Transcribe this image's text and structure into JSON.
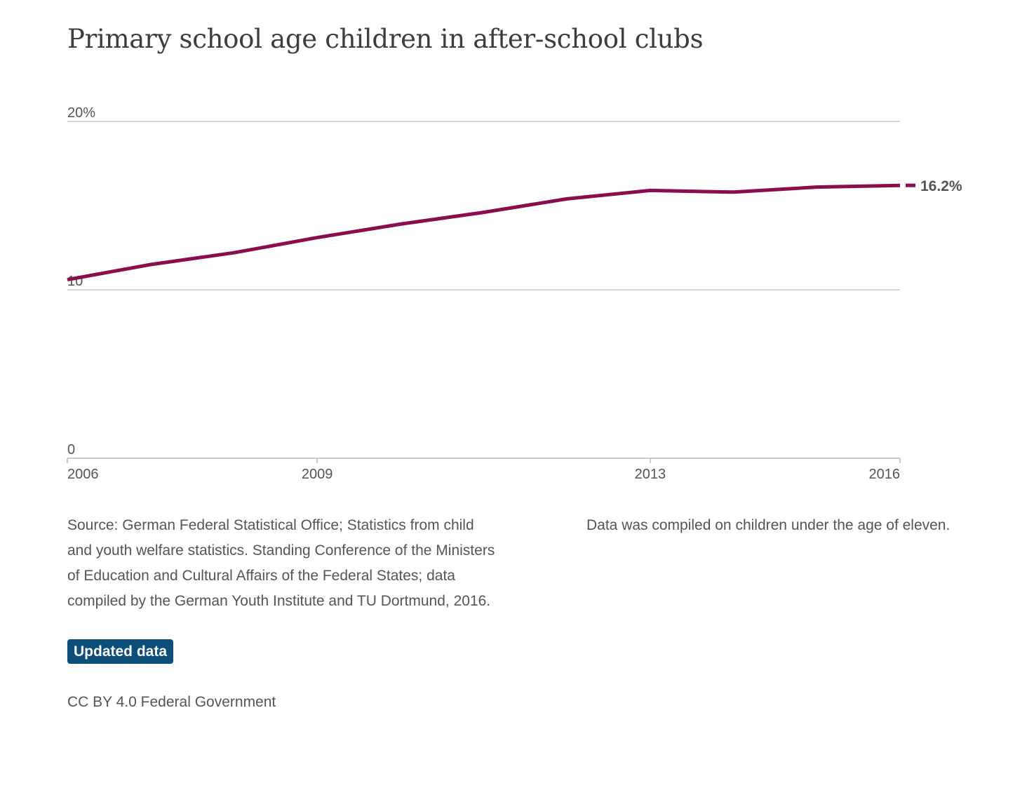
{
  "chart_data": {
    "type": "line",
    "title": "Primary school age children in after-school clubs",
    "x": [
      2006,
      2007,
      2008,
      2009,
      2010,
      2011,
      2012,
      2013,
      2014,
      2015,
      2016
    ],
    "series": [
      {
        "values": [
          10.6,
          11.5,
          12.2,
          13.1,
          13.9,
          14.6,
          15.4,
          15.9,
          15.8,
          16.1,
          16.2
        ],
        "color": "#8b0d4e"
      }
    ],
    "end_label": "16.2%",
    "x_ticks": [
      {
        "value": 2006,
        "label": "2006"
      },
      {
        "value": 2009,
        "label": "2009"
      },
      {
        "value": 2013,
        "label": "2013"
      },
      {
        "value": 2016,
        "label": "2016"
      }
    ],
    "y_ticks": [
      {
        "value": 0,
        "label": "0"
      },
      {
        "value": 10,
        "label": "10"
      },
      {
        "value": 20,
        "label": "20%"
      }
    ],
    "xlim": [
      2006,
      2016
    ],
    "ylim": [
      0,
      20
    ],
    "grid": true,
    "xlabel": "",
    "ylabel": ""
  },
  "footer": {
    "source": "Source: German Federal Statistical Office; Statistics from child and youth welfare statistics. Standing Conference of the Ministers of Education and Cultural Affairs of the Federal States; data compiled by the German Youth Institute and TU Dortmund, 2016.",
    "note": "Data was compiled on children under the age of eleven.",
    "updated_label": "Updated data",
    "license": "CC BY 4.0 Federal Government"
  },
  "colors": {
    "line": "#8b0d4e",
    "badge": "#0b4e7a",
    "grid": "#cccccc",
    "text": "#555555"
  }
}
